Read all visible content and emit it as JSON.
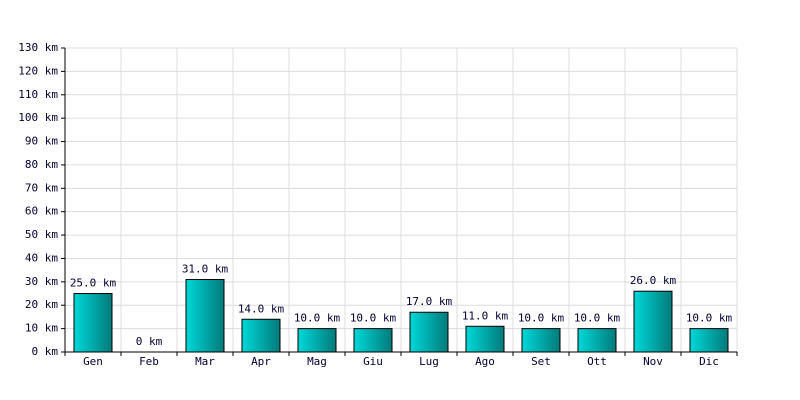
{
  "chart_data": {
    "type": "bar",
    "categories": [
      "Gen",
      "Feb",
      "Mar",
      "Apr",
      "Mag",
      "Giu",
      "Lug",
      "Ago",
      "Set",
      "Ott",
      "Nov",
      "Dic"
    ],
    "values": [
      25,
      0,
      31,
      14,
      10,
      10,
      17,
      11,
      10,
      10,
      26,
      10
    ],
    "value_labels": [
      "25.0 km",
      "0 km",
      "31.0 km",
      "14.0 km",
      "10.0 km",
      "10.0 km",
      "17.0 km",
      "11.0 km",
      "10.0 km",
      "10.0 km",
      "26.0 km",
      "10.0 km"
    ],
    "color": "#00d8d8",
    "ylim": [
      0,
      130
    ],
    "yticks": [
      {
        "value": 0,
        "label": "0 km"
      },
      {
        "value": 10,
        "label": "10 km"
      },
      {
        "value": 20,
        "label": "20 km"
      },
      {
        "value": 30,
        "label": "30 km"
      },
      {
        "value": 40,
        "label": "40 km"
      },
      {
        "value": 50,
        "label": "50 km"
      },
      {
        "value": 60,
        "label": "60 km"
      },
      {
        "value": 70,
        "label": "70 km"
      },
      {
        "value": 80,
        "label": "80 km"
      },
      {
        "value": 90,
        "label": "90 km"
      },
      {
        "value": 100,
        "label": "100 km"
      },
      {
        "value": 110,
        "label": "110 km"
      },
      {
        "value": 120,
        "label": "120 km"
      },
      {
        "value": 130,
        "label": "130 km"
      }
    ],
    "grid": true
  }
}
